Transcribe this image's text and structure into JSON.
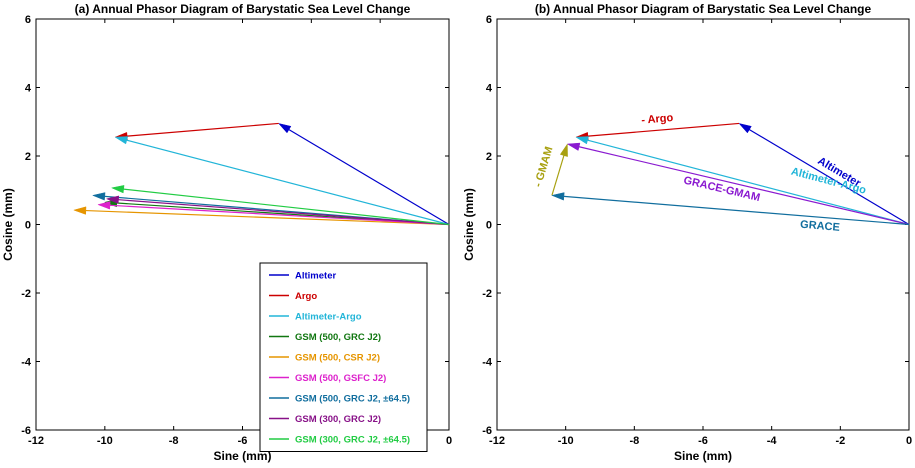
{
  "chart_data": [
    {
      "type": "line",
      "title": "(a) Annual Phasor Diagram of Barystatic Sea Level Change",
      "xlabel": "Sine (mm)",
      "ylabel": "Cosine (mm)",
      "xlim": [
        -12,
        0
      ],
      "ylim": [
        -6,
        6
      ],
      "xticks": [
        "-12",
        "-10",
        "-8",
        "-6",
        "-4",
        "-2",
        "0"
      ],
      "yticks": [
        "-6",
        "-4",
        "-2",
        "0",
        "2",
        "4",
        "6"
      ],
      "legend_position": "bottom-right",
      "series": [
        {
          "name": "Altimeter",
          "color": "#0000cc",
          "from": [
            0,
            0
          ],
          "to": [
            -4.95,
            2.95
          ]
        },
        {
          "name": "Argo",
          "color": "#cc0000",
          "from": [
            -4.95,
            2.95
          ],
          "to": [
            -9.7,
            2.55
          ]
        },
        {
          "name": "Altimeter-Argo",
          "color": "#22b5d8",
          "from": [
            0,
            0
          ],
          "to": [
            -9.7,
            2.55
          ]
        },
        {
          "name": "GSM (500, GRC J2)",
          "color": "#117711",
          "from": [
            0,
            0
          ],
          "to": [
            -10.0,
            0.65
          ]
        },
        {
          "name": "GSM (500, CSR J2)",
          "color": "#e69500",
          "from": [
            0,
            0
          ],
          "to": [
            -10.9,
            0.42
          ]
        },
        {
          "name": "GSM (500, GSFC J2)",
          "color": "#dd22cc",
          "from": [
            0,
            0
          ],
          "to": [
            -10.2,
            0.58
          ]
        },
        {
          "name": "GSM (500, GRC J2, ±64.5)",
          "color": "#116e9e",
          "from": [
            0,
            0
          ],
          "to": [
            -10.35,
            0.85
          ]
        },
        {
          "name": "GSM (300, GRC J2)",
          "color": "#881188",
          "from": [
            0,
            0
          ],
          "to": [
            -9.95,
            0.75
          ]
        },
        {
          "name": "GSM (300, GRC J2, ±64.5)",
          "color": "#22cc44",
          "from": [
            0,
            0
          ],
          "to": [
            -9.8,
            1.07
          ]
        }
      ]
    },
    {
      "type": "line",
      "title": "(b) Annual Phasor Diagram of Barystatic Sea Level Change",
      "xlabel": "Sine (mm)",
      "ylabel": "Cosine (mm)",
      "xlim": [
        -12,
        0
      ],
      "ylim": [
        -6,
        6
      ],
      "xticks": [
        "-12",
        "-10",
        "-8",
        "-6",
        "-4",
        "-2",
        "0"
      ],
      "yticks": [
        "-6",
        "-4",
        "-2",
        "0",
        "2",
        "4",
        "6"
      ],
      "series": [
        {
          "name": "Altimeter",
          "color": "#0000cc",
          "from": [
            0,
            0
          ],
          "to": [
            -4.95,
            2.95
          ]
        },
        {
          "name": "- Argo",
          "color": "#cc0000",
          "from": [
            -4.95,
            2.95
          ],
          "to": [
            -9.7,
            2.55
          ]
        },
        {
          "name": "Altimeter-Argo",
          "color": "#22b5d8",
          "from": [
            0,
            0
          ],
          "to": [
            -9.7,
            2.55
          ]
        },
        {
          "name": "GRACE-GMAM",
          "color": "#8a1ad0",
          "from": [
            0,
            0
          ],
          "to": [
            -9.95,
            2.35
          ]
        },
        {
          "name": "- GMAM",
          "color": "#a8a010",
          "from": [
            -10.4,
            0.85
          ],
          "to": [
            -9.95,
            2.35
          ]
        },
        {
          "name": "GRACE",
          "color": "#116e9e",
          "from": [
            0,
            0
          ],
          "to": [
            -10.4,
            0.85
          ]
        }
      ]
    }
  ]
}
